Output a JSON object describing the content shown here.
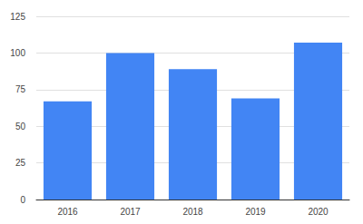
{
  "chart_data": {
    "type": "bar",
    "categories": [
      "2016",
      "2017",
      "2018",
      "2019",
      "2020"
    ],
    "values": [
      67,
      100,
      89,
      69,
      107
    ],
    "color": "#4285f4",
    "ylim": [
      0,
      125
    ],
    "yticks": [
      0,
      25,
      50,
      75,
      100,
      125
    ],
    "grid": true
  }
}
